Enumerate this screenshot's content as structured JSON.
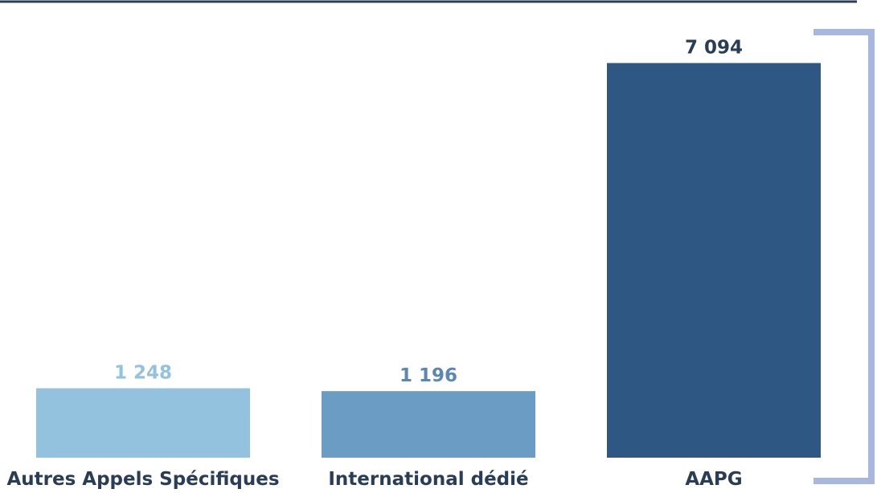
{
  "chart_data": {
    "type": "bar",
    "categories": [
      "Autres Appels Spécifiques",
      "International dédié",
      "AAPG"
    ],
    "values": [
      1248,
      1196,
      7094
    ],
    "value_labels": [
      "1 248",
      "1 196",
      "7 094"
    ],
    "title": "",
    "xlabel": "",
    "ylabel": "",
    "ylim": [
      0,
      7650
    ],
    "grid": false,
    "legend": "none"
  },
  "colors": {
    "bars": [
      "#93c2df",
      "#6b9cc4",
      "#2e5883"
    ],
    "labels": [
      "#93c2df",
      "#5a87b3",
      "#2a3d57"
    ],
    "top_rule": "#2c3e55",
    "bracket": "#a7b7dd",
    "category_text": "#2a3d57"
  }
}
